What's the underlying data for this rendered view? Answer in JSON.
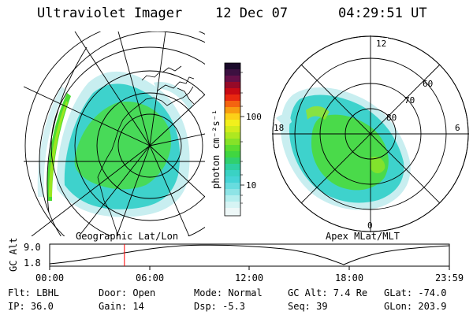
{
  "header": {
    "instrument": "Ultraviolet Imager",
    "date": "12 Dec 07",
    "time": "04:29:51 UT"
  },
  "left_panel": {
    "caption": "Geographic Lat/Lon"
  },
  "right_panel": {
    "caption": "Apex MLat/MLT",
    "mlt_labels": {
      "top": "12",
      "left": "18",
      "right": "6",
      "bottom": "0"
    },
    "lat_labels": [
      "60",
      "70",
      "80"
    ]
  },
  "colorbar": {
    "unit_label": "photon cm⁻²s⁻¹",
    "tick_labels": [
      "100",
      "10"
    ]
  },
  "altitude_plot": {
    "ylabel": "GC Alt",
    "ymax_label": "9.0",
    "ymin_label": "1.8",
    "time_ticks": [
      "00:00",
      "06:00",
      "12:00",
      "18:00",
      "23:59"
    ],
    "current_time_fraction": 0.187,
    "marker_color": "#ff0000"
  },
  "info": {
    "filter": "Flt: LBHL",
    "ip": "IP: 36.0",
    "door": "Door: Open",
    "gain": "Gain: 14",
    "mode": "Mode: Normal",
    "dsp": "Dsp:   -5.3",
    "gc_alt": "GC Alt: 7.4 Re",
    "seq": "Seq: 39",
    "glat": "GLat: -74.0",
    "glon": "GLon: 203.9"
  },
  "colors": {
    "cyan": "#3ed2cc",
    "green": "#4cdc32",
    "lime": "#9ae620",
    "pale": "#c8eef0"
  }
}
